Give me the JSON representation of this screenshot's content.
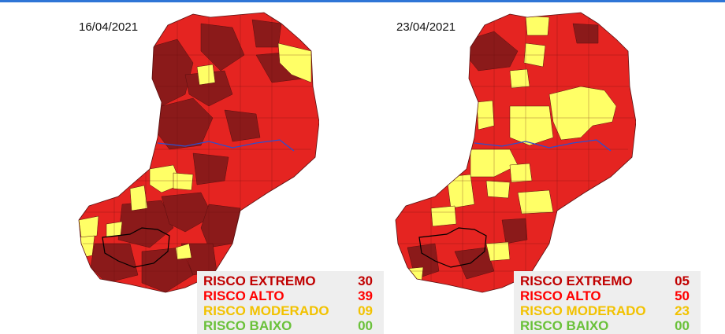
{
  "colors": {
    "extremo": "#8b1a1a",
    "alto": "#e52421",
    "moderado": "#ffff66",
    "baixo": "#6ac13a",
    "river": "#2a4fd0",
    "topbar": "#2e75d6"
  },
  "maps": [
    {
      "date": "16/04/2021",
      "summary": [
        {
          "label": "RISCO EXTREMO",
          "count": "30"
        },
        {
          "label": "RISCO ALTO",
          "count": "39"
        },
        {
          "label": "RISCO MODERADO",
          "count": "09"
        },
        {
          "label": "RISCO BAIXO",
          "count": "00"
        }
      ]
    },
    {
      "date": "23/04/2021",
      "summary": [
        {
          "label": "RISCO EXTREMO",
          "count": "05"
        },
        {
          "label": "RISCO ALTO",
          "count": "50"
        },
        {
          "label": "RISCO MODERADO",
          "count": "23"
        },
        {
          "label": "RISCO BAIXO",
          "count": "00"
        }
      ]
    }
  ]
}
